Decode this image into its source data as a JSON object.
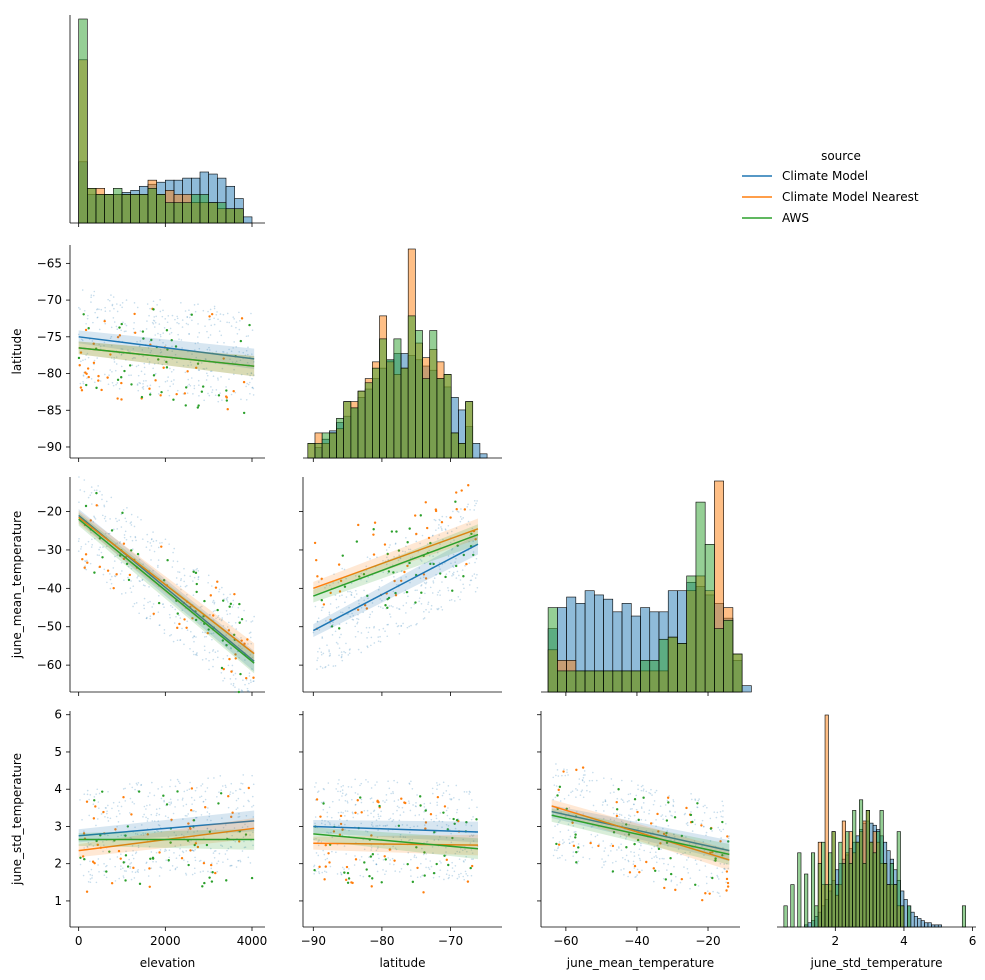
{
  "colors": {
    "climate_model": "#1f77b4",
    "climate_model_nearest": "#ff7f0e",
    "aws": "#2ca02c",
    "overlap": "#4b6f58"
  },
  "legend": {
    "title": "source",
    "entries": [
      "Climate Model",
      "Climate Model Nearest",
      "AWS"
    ]
  },
  "chart_data": {
    "type": "pairplot",
    "variables": [
      "elevation",
      "latitude",
      "june_mean_temperature",
      "june_std_temperature"
    ],
    "hue": "source",
    "corner": true,
    "diagonal_kind": "histogram",
    "offdiagonal_kind": "scatter with linear regression fit",
    "axes": {
      "elevation": {
        "label": "elevation",
        "range": [
          -200,
          4300
        ],
        "ticks": [
          0,
          2000,
          4000
        ],
        "tick_labels": [
          "0",
          "2000",
          "4000"
        ]
      },
      "latitude": {
        "label": "latitude",
        "range": [
          -91.5,
          -62.5
        ],
        "ticks": [
          -90,
          -85,
          -80,
          -75,
          -70,
          -65
        ],
        "tick_labels": [
          "−90",
          "−85",
          "−80",
          "−75",
          "−70",
          "−65"
        ],
        "x_ticks": [
          -90,
          -80,
          -70
        ],
        "x_tick_labels": [
          "−90",
          "−80",
          "−70"
        ]
      },
      "june_mean_temperature": {
        "label": "june_mean_temperature",
        "range": [
          -67,
          -11
        ],
        "ticks": [
          -60,
          -50,
          -40,
          -30,
          -20
        ],
        "tick_labels": [
          "−60",
          "−50",
          "−40",
          "−30",
          "−20"
        ],
        "x_ticks": [
          -60,
          -40,
          -20
        ],
        "x_tick_labels": [
          "−60",
          "−40",
          "−20"
        ]
      },
      "june_std_temperature": {
        "label": "june_std_temperature",
        "range": [
          0.3,
          6.1
        ],
        "ticks": [
          1,
          2,
          3,
          4,
          5,
          6
        ],
        "tick_labels": [
          "1",
          "2",
          "3",
          "4",
          "5",
          "6"
        ],
        "x_ticks": [
          2,
          4,
          6
        ],
        "x_tick_labels": [
          "2",
          "4",
          "6"
        ]
      }
    },
    "regressions": [
      {
        "x": "elevation",
        "y": "latitude",
        "x_range": [
          0,
          4050
        ],
        "fits": {
          "Climate Model": [
            -75.0,
            -78.0
          ],
          "Climate Model Nearest": [
            -76.5,
            -79.0
          ],
          "AWS": [
            -76.5,
            -79.0
          ]
        }
      },
      {
        "x": "elevation",
        "y": "june_mean_temperature",
        "x_range": [
          0,
          4050
        ],
        "fits": {
          "Climate Model": [
            -21.0,
            -59.0
          ],
          "Climate Model Nearest": [
            -21.5,
            -57.0
          ],
          "AWS": [
            -22.0,
            -59.5
          ]
        }
      },
      {
        "x": "latitude",
        "y": "june_mean_temperature",
        "x_range": [
          -90,
          -66
        ],
        "fits": {
          "Climate Model": [
            -51.0,
            -28.5
          ],
          "Climate Model Nearest": [
            -40.0,
            -24.5
          ],
          "AWS": [
            -42.0,
            -26.0
          ]
        }
      },
      {
        "x": "elevation",
        "y": "june_std_temperature",
        "x_range": [
          0,
          4050
        ],
        "fits": {
          "Climate Model": [
            2.75,
            3.15
          ],
          "Climate Model Nearest": [
            2.35,
            2.95
          ],
          "AWS": [
            2.65,
            2.65
          ]
        }
      },
      {
        "x": "latitude",
        "y": "june_std_temperature",
        "x_range": [
          -90,
          -66
        ],
        "fits": {
          "Climate Model": [
            3.0,
            2.85
          ],
          "Climate Model Nearest": [
            2.55,
            2.5
          ],
          "AWS": [
            2.8,
            2.4
          ]
        }
      },
      {
        "x": "june_mean_temperature",
        "y": "june_std_temperature",
        "x_range": [
          -64,
          -14
        ],
        "fits": {
          "Climate Model": [
            3.4,
            2.35
          ],
          "Climate Model Nearest": [
            3.55,
            2.1
          ],
          "AWS": [
            3.3,
            2.25
          ]
        }
      }
    ],
    "histograms": [
      {
        "variable": "elevation",
        "bin_start": 0,
        "bin_width": 200,
        "density": {
          "Climate Model": [
            0.3,
            0.14,
            0.14,
            0.14,
            0.14,
            0.15,
            0.16,
            0.18,
            0.19,
            0.2,
            0.21,
            0.21,
            0.22,
            0.22,
            0.25,
            0.24,
            0.22,
            0.18,
            0.12,
            0.03
          ],
          "Climate Model Nearest": [
            0.8,
            0.17,
            0.17,
            0.14,
            0.14,
            0.14,
            0.14,
            0.14,
            0.21,
            0.14,
            0.16,
            0.14,
            0.14,
            0.1,
            0.1,
            0.1,
            0.07,
            0.07,
            0.07,
            0.0
          ],
          "AWS": [
            1.0,
            0.17,
            0.14,
            0.14,
            0.17,
            0.14,
            0.14,
            0.14,
            0.17,
            0.14,
            0.1,
            0.1,
            0.1,
            0.14,
            0.14,
            0.1,
            0.1,
            0.07,
            0.07,
            0.0
          ]
        }
      },
      {
        "variable": "latitude",
        "bin_start": -90.8,
        "bin_width": 1.045,
        "density": {
          "Climate Model": [
            0.0,
            0.05,
            0.09,
            0.13,
            0.17,
            0.2,
            0.24,
            0.29,
            0.33,
            0.38,
            0.43,
            0.47,
            0.5,
            0.5,
            0.49,
            0.47,
            0.44,
            0.42,
            0.38,
            0.34,
            0.29,
            0.23,
            0.15,
            0.07,
            0.02
          ],
          "Climate Model Nearest": [
            0.07,
            0.12,
            0.07,
            0.12,
            0.14,
            0.27,
            0.27,
            0.32,
            0.38,
            0.46,
            0.68,
            0.46,
            0.4,
            0.43,
            1.0,
            0.55,
            0.48,
            0.52,
            0.46,
            0.4,
            0.12,
            0.07,
            0.27,
            0.0,
            0.0
          ],
          "AWS": [
            0.07,
            0.07,
            0.12,
            0.12,
            0.19,
            0.27,
            0.24,
            0.32,
            0.36,
            0.43,
            0.57,
            0.47,
            0.57,
            0.43,
            0.68,
            0.61,
            0.38,
            0.61,
            0.38,
            0.4,
            0.12,
            0.07,
            0.27,
            0.0,
            0.0
          ]
        }
      },
      {
        "variable": "june_mean_temperature",
        "bin_start": -65,
        "bin_width": 2.6,
        "density": {
          "Climate Model": [
            0.3,
            0.4,
            0.45,
            0.42,
            0.48,
            0.46,
            0.44,
            0.38,
            0.42,
            0.36,
            0.4,
            0.38,
            0.38,
            0.48,
            0.48,
            0.52,
            0.5,
            0.46,
            0.42,
            0.35,
            0.15,
            0.03
          ],
          "Climate Model Nearest": [
            0.2,
            0.15,
            0.15,
            0.1,
            0.1,
            0.1,
            0.1,
            0.1,
            0.1,
            0.1,
            0.1,
            0.1,
            0.1,
            0.26,
            0.23,
            0.48,
            0.55,
            0.48,
            1.0,
            0.4,
            0.18,
            0.0
          ],
          "AWS": [
            0.4,
            0.1,
            0.1,
            0.1,
            0.1,
            0.1,
            0.1,
            0.1,
            0.1,
            0.1,
            0.15,
            0.15,
            0.25,
            0.26,
            0.23,
            0.55,
            0.9,
            0.7,
            0.3,
            0.34,
            0.18,
            0.0
          ]
        }
      },
      {
        "variable": "june_std_temperature",
        "bin_start": 0.4,
        "bin_width": 0.1,
        "density": {
          "Climate Model": [
            0.0,
            0.0,
            0.0,
            0.0,
            0.0,
            0.0,
            0.0,
            0.01,
            0.02,
            0.03,
            0.05,
            0.07,
            0.1,
            0.13,
            0.17,
            0.22,
            0.27,
            0.3,
            0.32,
            0.34,
            0.37,
            0.4,
            0.43,
            0.46,
            0.49,
            0.5,
            0.49,
            0.48,
            0.46,
            0.43,
            0.4,
            0.36,
            0.32,
            0.27,
            0.22,
            0.17,
            0.13,
            0.1,
            0.07,
            0.05,
            0.04,
            0.03,
            0.02,
            0.02,
            0.01,
            0.01,
            0.01,
            0.0,
            0.0,
            0.0,
            0.0,
            0.0,
            0.0,
            0.0
          ],
          "Climate Model Nearest": [
            0.0,
            0.0,
            0.0,
            0.0,
            0.0,
            0.0,
            0.0,
            0.0,
            0.0,
            0.0,
            0.0,
            0.4,
            0.2,
            1.0,
            0.2,
            0.45,
            0.15,
            0.2,
            0.5,
            0.35,
            0.45,
            0.35,
            0.4,
            0.45,
            0.5,
            0.55,
            0.4,
            0.45,
            0.4,
            0.3,
            0.3,
            0.2,
            0.2,
            0.2,
            0.1,
            0.1,
            0.0,
            0.0,
            0.0,
            0.0,
            0.0,
            0.0,
            0.0,
            0.0,
            0.0,
            0.0,
            0.0,
            0.0,
            0.0,
            0.0,
            0.0,
            0.0,
            0.0,
            0.0
          ],
          "AWS": [
            0.0,
            0.1,
            0.0,
            0.2,
            0.0,
            0.35,
            0.0,
            0.25,
            0.0,
            0.35,
            0.1,
            0.3,
            0.4,
            0.2,
            0.35,
            0.45,
            0.2,
            0.4,
            0.3,
            0.45,
            0.3,
            0.55,
            0.4,
            0.6,
            0.3,
            0.55,
            0.4,
            0.35,
            0.45,
            0.55,
            0.3,
            0.2,
            0.3,
            0.2,
            0.45,
            0.1,
            0.0,
            0.1,
            0.0,
            0.0,
            0.0,
            0.0,
            0.0,
            0.0,
            0.0,
            0.0,
            0.0,
            0.0,
            0.0,
            0.0,
            0.0,
            0.0,
            0.0,
            0.1
          ]
        }
      }
    ]
  }
}
